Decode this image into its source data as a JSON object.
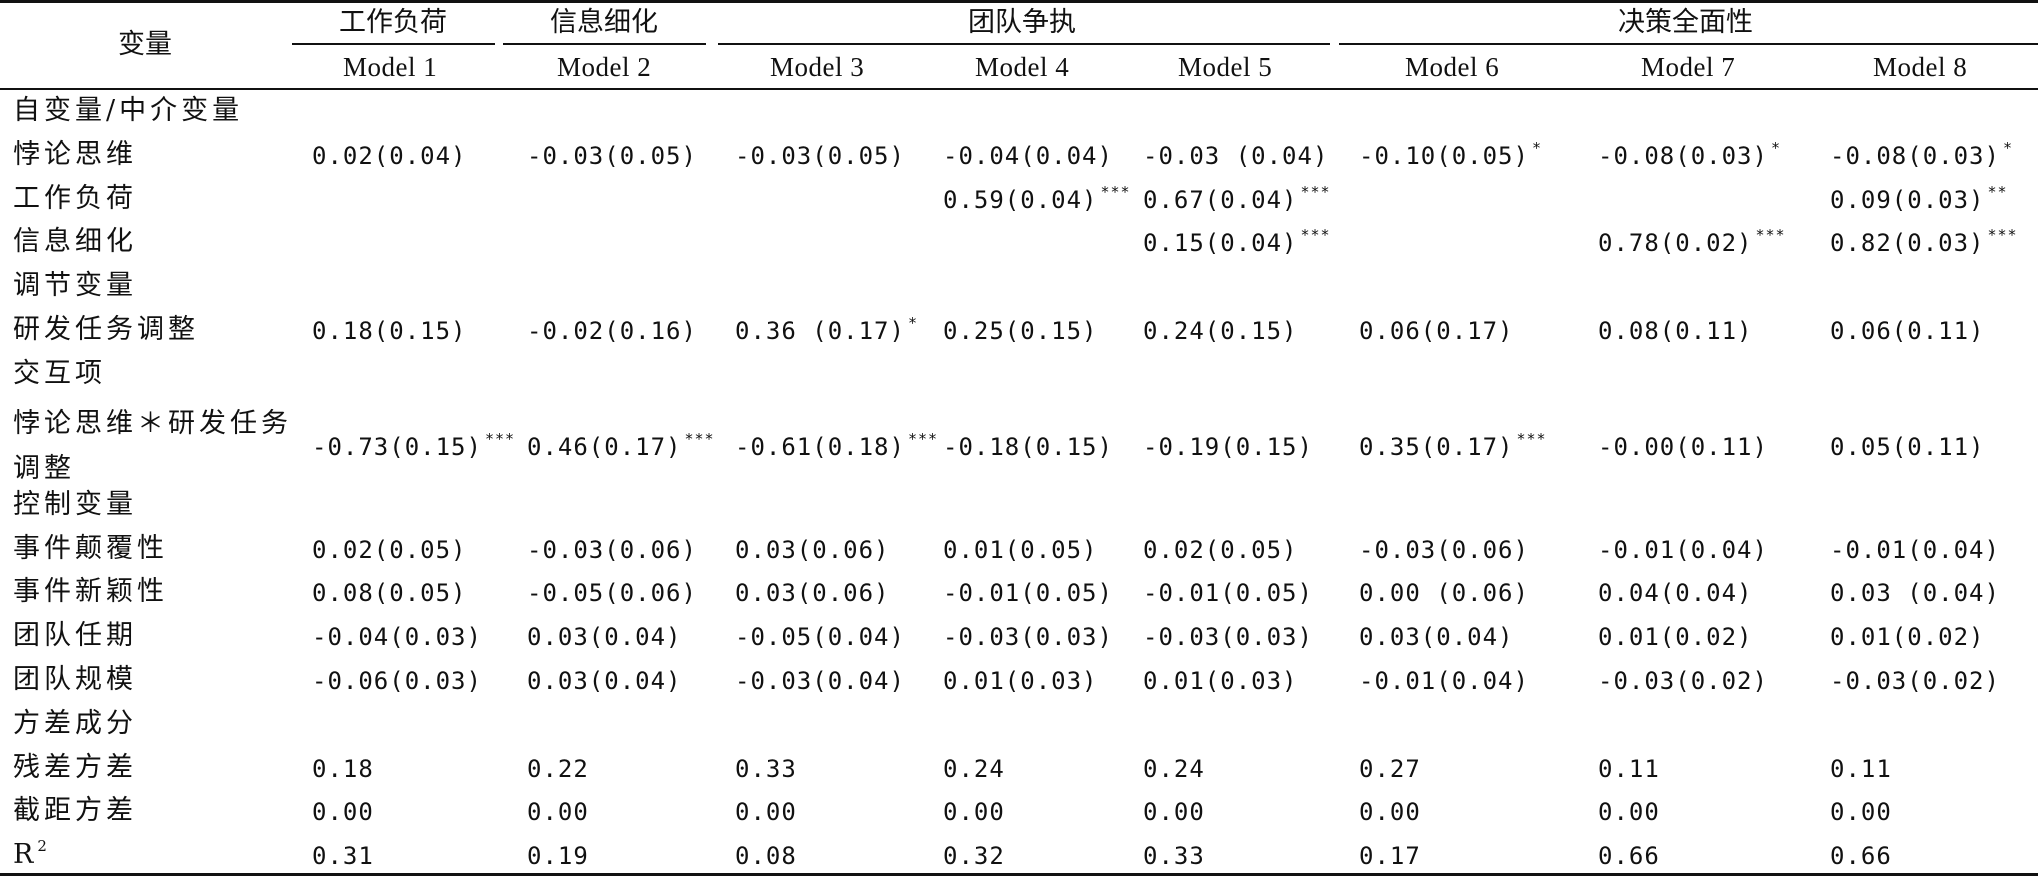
{
  "header": {
    "variable_label": "变量",
    "groups": [
      "工作负荷",
      "信息细化",
      "团队争执",
      "决策全面性"
    ],
    "models": [
      "Model 1",
      "Model 2",
      "Model 3",
      "Model 4",
      "Model 5",
      "Model 6",
      "Model 7",
      "Model 8"
    ]
  },
  "rows": [
    {
      "label": "自变量/中介变量",
      "cells": [
        "",
        "",
        "",
        "",
        "",
        "",
        "",
        ""
      ]
    },
    {
      "label": "悖论思维",
      "cells": [
        "0.02(0.04)",
        "-0.03(0.05)",
        "-0.03(0.05)",
        "-0.04(0.04)",
        "-0.03 (0.04)",
        "-0.10(0.05)",
        "-0.08(0.03)",
        "-0.08(0.03)"
      ],
      "stars": [
        "",
        "",
        "",
        "",
        "",
        "*",
        "*",
        "*"
      ]
    },
    {
      "label": "工作负荷",
      "cells": [
        "",
        "",
        "",
        "0.59(0.04)",
        "0.67(0.04)",
        "",
        "",
        "0.09(0.03)"
      ],
      "stars": [
        "",
        "",
        "",
        "***",
        "***",
        "",
        "",
        "**"
      ]
    },
    {
      "label": "信息细化",
      "cells": [
        "",
        "",
        "",
        "",
        "0.15(0.04)",
        "",
        "0.78(0.02)",
        "0.82(0.03)"
      ],
      "stars": [
        "",
        "",
        "",
        "",
        "***",
        "",
        "***",
        "***"
      ]
    },
    {
      "label": "调节变量",
      "cells": [
        "",
        "",
        "",
        "",
        "",
        "",
        "",
        ""
      ]
    },
    {
      "label": "研发任务调整",
      "cells": [
        "0.18(0.15)",
        "-0.02(0.16)",
        "0.36 (0.17)",
        "0.25(0.15)",
        "0.24(0.15)",
        "0.06(0.17)",
        "0.08(0.11)",
        "0.06(0.11)"
      ],
      "stars": [
        "",
        "",
        "*",
        "",
        "",
        "",
        "",
        ""
      ]
    },
    {
      "label": "交互项",
      "cells": [
        "",
        "",
        "",
        "",
        "",
        "",
        "",
        ""
      ]
    },
    {
      "label": "悖论思维＊研发任务",
      "label2": "调整",
      "cells": [
        "-0.73(0.15)",
        "0.46(0.17)",
        "-0.61(0.18)",
        "-0.18(0.15)",
        "-0.19(0.15)",
        "0.35(0.17)",
        "-0.00(0.11)",
        "0.05(0.11)"
      ],
      "stars": [
        "***",
        "***",
        "***",
        "",
        "",
        "***",
        "",
        ""
      ]
    },
    {
      "label": "控制变量",
      "cells": [
        "",
        "",
        "",
        "",
        "",
        "",
        "",
        ""
      ]
    },
    {
      "label": "事件颠覆性",
      "cells": [
        "0.02(0.05)",
        "-0.03(0.06)",
        "0.03(0.06)",
        "0.01(0.05)",
        "0.02(0.05)",
        "-0.03(0.06)",
        "-0.01(0.04)",
        "-0.01(0.04)"
      ]
    },
    {
      "label": "事件新颖性",
      "cells": [
        "0.08(0.05)",
        "-0.05(0.06)",
        "0.03(0.06)",
        "-0.01(0.05)",
        "-0.01(0.05)",
        "0.00 (0.06)",
        "0.04(0.04)",
        "0.03 (0.04)"
      ]
    },
    {
      "label": "团队任期",
      "cells": [
        "-0.04(0.03)",
        "0.03(0.04)",
        "-0.05(0.04)",
        "-0.03(0.03)",
        "-0.03(0.03)",
        "0.03(0.04)",
        "0.01(0.02)",
        "0.01(0.02)"
      ]
    },
    {
      "label": "团队规模",
      "cells": [
        "-0.06(0.03)",
        "0.03(0.04)",
        "-0.03(0.04)",
        "0.01(0.03)",
        "0.01(0.03)",
        "-0.01(0.04)",
        "-0.03(0.02)",
        "-0.03(0.02)"
      ]
    },
    {
      "label": "方差成分",
      "cells": [
        "",
        "",
        "",
        "",
        "",
        "",
        "",
        ""
      ]
    },
    {
      "label": "残差方差",
      "cells": [
        "0.18",
        "0.22",
        "0.33",
        "0.24",
        "0.24",
        "0.27",
        "0.11",
        "0.11"
      ]
    },
    {
      "label": "截距方差",
      "cells": [
        "0.00",
        "0.00",
        "0.00",
        "0.00",
        "0.00",
        "0.00",
        "0.00",
        "0.00"
      ]
    },
    {
      "label": "R",
      "label_sup": "2",
      "cells": [
        "0.31",
        "0.19",
        "0.08",
        "0.32",
        "0.33",
        "0.17",
        "0.66",
        "0.66"
      ]
    }
  ]
}
